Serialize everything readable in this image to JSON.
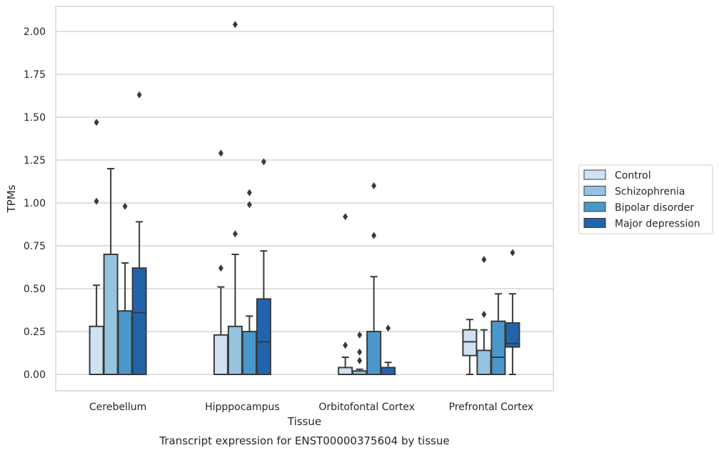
{
  "chart_data": {
    "type": "box",
    "title": "Transcript expression for ENST00000375604 by tissue",
    "xlabel": "Tissue",
    "ylabel": "TPMs",
    "ylim": [
      -0.1,
      2.15
    ],
    "yticks": [
      "0.00",
      "0.25",
      "0.50",
      "0.75",
      "1.00",
      "1.25",
      "1.50",
      "1.75",
      "2.00"
    ],
    "grid": true,
    "legend_position": "right",
    "categories": [
      "Cerebellum",
      "Hipppocampus",
      "Orbitofontal Cortex",
      "Prefrontal Cortex"
    ],
    "series": [
      {
        "name": "Control",
        "color": "#d0e1f2",
        "boxes": [
          {
            "q1": 0.0,
            "median": 0.0,
            "q3": 0.28,
            "whisker_low": 0.0,
            "whisker_high": 0.52,
            "outliers": [
              1.01,
              1.47
            ]
          },
          {
            "q1": 0.0,
            "median": 0.0,
            "q3": 0.23,
            "whisker_low": 0.0,
            "whisker_high": 0.51,
            "outliers": [
              0.62,
              1.29
            ]
          },
          {
            "q1": 0.0,
            "median": 0.0,
            "q3": 0.04,
            "whisker_low": 0.0,
            "whisker_high": 0.1,
            "outliers": [
              0.17,
              0.92
            ]
          },
          {
            "q1": 0.11,
            "median": 0.19,
            "q3": 0.26,
            "whisker_low": 0.0,
            "whisker_high": 0.32,
            "outliers": []
          }
        ]
      },
      {
        "name": "Schizophrenia",
        "color": "#94c4df",
        "boxes": [
          {
            "q1": 0.0,
            "median": 0.0,
            "q3": 0.7,
            "whisker_low": 0.0,
            "whisker_high": 1.2,
            "outliers": []
          },
          {
            "q1": 0.0,
            "median": 0.0,
            "q3": 0.28,
            "whisker_low": 0.0,
            "whisker_high": 0.7,
            "outliers": [
              0.82,
              2.04
            ]
          },
          {
            "q1": 0.0,
            "median": 0.0,
            "q3": 0.02,
            "whisker_low": 0.0,
            "whisker_high": 0.03,
            "outliers": [
              0.08,
              0.13,
              0.23
            ]
          },
          {
            "q1": 0.0,
            "median": 0.0,
            "q3": 0.14,
            "whisker_low": 0.0,
            "whisker_high": 0.26,
            "outliers": [
              0.35,
              0.67
            ]
          }
        ]
      },
      {
        "name": "Bipolar disorder",
        "color": "#4a98c9",
        "boxes": [
          {
            "q1": 0.0,
            "median": 0.0,
            "q3": 0.37,
            "whisker_low": 0.0,
            "whisker_high": 0.65,
            "outliers": [
              0.98
            ]
          },
          {
            "q1": 0.0,
            "median": 0.0,
            "q3": 0.25,
            "whisker_low": 0.0,
            "whisker_high": 0.34,
            "outliers": [
              0.99,
              1.06
            ]
          },
          {
            "q1": 0.0,
            "median": 0.0,
            "q3": 0.25,
            "whisker_low": 0.0,
            "whisker_high": 0.57,
            "outliers": [
              0.81,
              1.1
            ]
          },
          {
            "q1": 0.0,
            "median": 0.1,
            "q3": 0.31,
            "whisker_low": 0.0,
            "whisker_high": 0.47,
            "outliers": []
          }
        ]
      },
      {
        "name": "Major depression",
        "color": "#2164ab",
        "boxes": [
          {
            "q1": 0.0,
            "median": 0.36,
            "q3": 0.62,
            "whisker_low": 0.0,
            "whisker_high": 0.89,
            "outliers": [
              1.63
            ]
          },
          {
            "q1": 0.0,
            "median": 0.19,
            "q3": 0.44,
            "whisker_low": 0.0,
            "whisker_high": 0.72,
            "outliers": [
              1.24
            ]
          },
          {
            "q1": 0.0,
            "median": 0.0,
            "q3": 0.04,
            "whisker_low": 0.0,
            "whisker_high": 0.07,
            "outliers": [
              0.27
            ]
          },
          {
            "q1": 0.16,
            "median": 0.18,
            "q3": 0.3,
            "whisker_low": 0.0,
            "whisker_high": 0.47,
            "outliers": [
              0.71
            ]
          }
        ]
      }
    ]
  }
}
